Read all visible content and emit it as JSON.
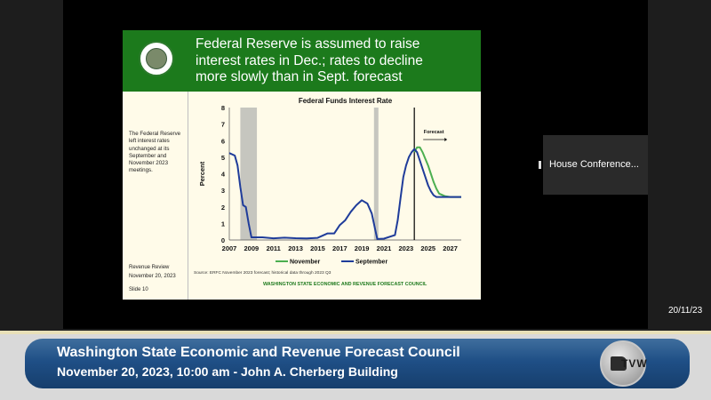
{
  "slide": {
    "title_line1": "Federal Reserve is assumed to raise",
    "title_line2": "interest rates in Dec.; rates to decline",
    "title_line3": "more slowly than in Sept. forecast",
    "side_note": "The Federal Reserve left interest rates unchanged at its September and November 2023 meetings.",
    "review_line1": "Revenue Review",
    "review_line2": "November 20, 2023",
    "slide_number": "Slide 10",
    "source": "Source: ERFC November 2023 forecast; historical data through 2023 Q3",
    "council": "WASHINGTON STATE ECONOMIC AND REVENUE FORECAST COUNCIL"
  },
  "chart_data": {
    "type": "line",
    "title": "Federal Funds Interest Rate",
    "ylabel": "Percent",
    "xlabel": "",
    "ylim": [
      0,
      8
    ],
    "yticks": [
      "0",
      "1",
      "2",
      "3",
      "4",
      "5",
      "6",
      "7",
      "8"
    ],
    "xlim": [
      2007,
      2028
    ],
    "xticks": [
      "2007",
      "2009",
      "2011",
      "2013",
      "2015",
      "2017",
      "2019",
      "2021",
      "2023",
      "2025",
      "2027"
    ],
    "recessions": [
      [
        2008.0,
        2009.5
      ],
      [
        2020.1,
        2020.5
      ]
    ],
    "forecast_start": 2023.75,
    "forecast_label": "Forecast",
    "legend_position": "bottom",
    "series": [
      {
        "name": "November",
        "color": "#4caf50",
        "x": [
          2023.75,
          2024.0,
          2024.25,
          2024.5,
          2024.75,
          2025.0,
          2025.25,
          2025.5,
          2025.75,
          2026.0,
          2026.5,
          2027.0,
          2027.5,
          2028.0
        ],
        "y": [
          5.3,
          5.6,
          5.6,
          5.3,
          4.9,
          4.5,
          4.0,
          3.5,
          3.1,
          2.8,
          2.65,
          2.6,
          2.6,
          2.6
        ]
      },
      {
        "name": "September",
        "color": "#1f3c9a",
        "x": [
          2007.0,
          2007.5,
          2007.75,
          2008.0,
          2008.25,
          2008.5,
          2008.75,
          2009.0,
          2010.0,
          2011.0,
          2012.0,
          2013.0,
          2014.0,
          2015.0,
          2015.9,
          2016.5,
          2017.0,
          2017.5,
          2018.0,
          2018.5,
          2019.0,
          2019.5,
          2019.9,
          2020.2,
          2020.4,
          2021.0,
          2022.0,
          2022.25,
          2022.5,
          2022.75,
          2023.0,
          2023.25,
          2023.5,
          2023.75,
          2024.0,
          2024.25,
          2024.5,
          2024.75,
          2025.0,
          2025.25,
          2025.5,
          2025.75,
          2026.0,
          2026.5,
          2027.0,
          2027.5,
          2028.0
        ],
        "y": [
          5.25,
          5.1,
          4.5,
          3.2,
          2.1,
          2.0,
          1.0,
          0.16,
          0.16,
          0.1,
          0.14,
          0.11,
          0.09,
          0.13,
          0.4,
          0.4,
          0.9,
          1.2,
          1.7,
          2.1,
          2.4,
          2.2,
          1.6,
          0.65,
          0.06,
          0.08,
          0.3,
          1.2,
          2.5,
          3.8,
          4.5,
          5.0,
          5.3,
          5.5,
          5.3,
          4.8,
          4.3,
          3.8,
          3.3,
          2.95,
          2.7,
          2.6,
          2.6,
          2.6,
          2.6,
          2.6,
          2.6
        ]
      }
    ]
  },
  "conference_tile": {
    "label": "House Conference..."
  },
  "date_stamp": "20/11/23",
  "banner": {
    "title": "Washington State Economic and Revenue Forecast Council",
    "subtitle": "November 20, 2023, 10:00 am - John A. Cherberg Building",
    "logo_text": "TVW"
  },
  "colors": {
    "slide_header": "#1c7a1c",
    "banner": "#1f4f86",
    "recession_band": "#c6c6bf"
  }
}
